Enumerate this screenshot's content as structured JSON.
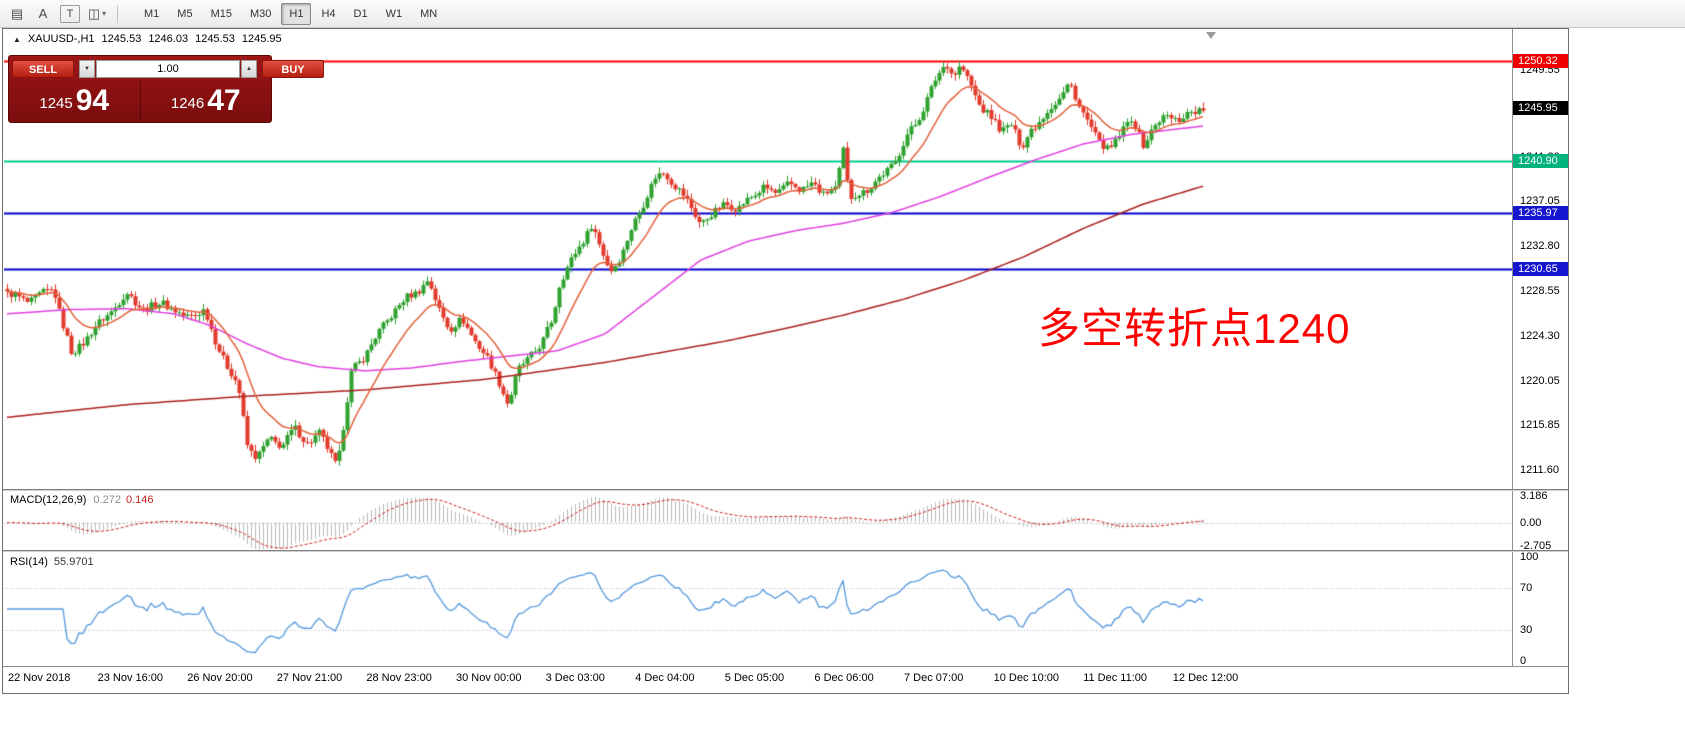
{
  "toolbar": {
    "tools": [
      {
        "name": "chart-template",
        "glyph": "▤"
      },
      {
        "name": "annotation-tool",
        "glyph": "A"
      },
      {
        "name": "text-label-tool",
        "glyph": "T",
        "boxed": true
      },
      {
        "name": "chart-objects",
        "glyph": "◫",
        "caret": true
      }
    ],
    "timeframes": [
      "M1",
      "M5",
      "M15",
      "M30",
      "H1",
      "H4",
      "D1",
      "W1",
      "MN"
    ],
    "active_timeframe": "H1"
  },
  "chart": {
    "symbol": "XAUUSD-,H1",
    "open": "1245.53",
    "high": "1246.03",
    "low": "1245.53",
    "close": "1245.95",
    "collapse_glyph": "▲",
    "current_price": "1245.95",
    "annotation": "多空转折点1240",
    "price_axis": [
      "1249.55",
      "1245.55",
      "1241.30",
      "1237.05",
      "1232.80",
      "1228.55",
      "1224.30",
      "1220.05",
      "1215.85",
      "1211.60"
    ]
  },
  "trade_panel": {
    "sell_label": "SELL",
    "buy_label": "BUY",
    "volume": "1.00",
    "volume_down_glyph": "▼",
    "volume_up_glyph": "▲",
    "sell_price_small": "1245",
    "sell_price_big": "94",
    "buy_price_small": "1246",
    "buy_price_big": "47"
  },
  "macd": {
    "title": "MACD(12,26,9)",
    "main_value": "0.272",
    "signal_value": "0.146",
    "axis": [
      "3.186",
      "0.00",
      "-2.705"
    ]
  },
  "rsi": {
    "title": "RSI(14)",
    "value": "55.9701",
    "axis": [
      "100",
      "70",
      "30",
      "0"
    ]
  },
  "time_axis": [
    "22 Nov 2018",
    "23 Nov 16:00",
    "26 Nov 20:00",
    "27 Nov 21:00",
    "28 Nov 23:00",
    "30 Nov 00:00",
    "3 Dec 03:00",
    "4 Dec 04:00",
    "5 Dec 05:00",
    "6 Dec 06:00",
    "7 Dec 07:00",
    "10 Dec 10:00",
    "11 Dec 11:00",
    "12 Dec 12:00"
  ],
  "chart_data": {
    "type": "candlestick",
    "symbol": "XAUUSD-",
    "timeframe": "H1",
    "bars": 300,
    "price_top": 1253.2,
    "price_bottom": 1210.0,
    "current_price": 1245.95,
    "hlines": [
      {
        "price": 1250.32,
        "label": "1250.32",
        "color": "#ff0000",
        "label_bg": "#ee0000",
        "width": 2
      },
      {
        "price": 1240.9,
        "label": "1240.90",
        "color": "#00c98d",
        "label_bg": "#00b27c",
        "width": 2
      },
      {
        "price": 1235.97,
        "label": "1235.97",
        "color": "#0000cc",
        "label_bg": "#1515cf",
        "width": 2
      },
      {
        "price": 1230.65,
        "label": "1230.65",
        "color": "#0000cc",
        "label_bg": "#1515cf",
        "width": 2
      }
    ],
    "colors": {
      "candle_up": "#2fa12f",
      "candle_down": "#e23a2c",
      "ma_fast": "#e2613b",
      "ma_mid": "#e040e0",
      "ma_slow": "#aa1f1f",
      "macd_hist": "#bbbbbb",
      "macd_signal": "#cc2222",
      "rsi_line": "#5599dd",
      "current_bg": "#000000"
    },
    "price_anchors": [
      [
        0,
        1228.3
      ],
      [
        0.018,
        1227.6
      ],
      [
        0.039,
        1228.8
      ],
      [
        0.045,
        1226.0
      ],
      [
        0.054,
        1222.5
      ],
      [
        0.069,
        1224.5
      ],
      [
        0.085,
        1226.5
      ],
      [
        0.1,
        1228.3
      ],
      [
        0.115,
        1226.8
      ],
      [
        0.131,
        1227.5
      ],
      [
        0.148,
        1226.0
      ],
      [
        0.165,
        1226.8
      ],
      [
        0.173,
        1224.0
      ],
      [
        0.184,
        1221.5
      ],
      [
        0.193,
        1219.5
      ],
      [
        0.201,
        1213.8
      ],
      [
        0.209,
        1212.8
      ],
      [
        0.219,
        1214.5
      ],
      [
        0.23,
        1214.0
      ],
      [
        0.24,
        1215.5
      ],
      [
        0.251,
        1214.2
      ],
      [
        0.261,
        1215.0
      ],
      [
        0.271,
        1213.0
      ],
      [
        0.276,
        1212.0
      ],
      [
        0.282,
        1216.5
      ],
      [
        0.288,
        1221.0
      ],
      [
        0.299,
        1222.5
      ],
      [
        0.31,
        1224.5
      ],
      [
        0.322,
        1226.5
      ],
      [
        0.333,
        1227.8
      ],
      [
        0.343,
        1228.6
      ],
      [
        0.352,
        1229.6
      ],
      [
        0.36,
        1227.0
      ],
      [
        0.37,
        1225.0
      ],
      [
        0.38,
        1225.8
      ],
      [
        0.391,
        1224.0
      ],
      [
        0.402,
        1222.0
      ],
      [
        0.412,
        1219.8
      ],
      [
        0.419,
        1217.8
      ],
      [
        0.427,
        1221.0
      ],
      [
        0.437,
        1222.5
      ],
      [
        0.447,
        1223.5
      ],
      [
        0.456,
        1226.0
      ],
      [
        0.462,
        1229.5
      ],
      [
        0.472,
        1231.5
      ],
      [
        0.482,
        1233.5
      ],
      [
        0.489,
        1235.0
      ],
      [
        0.496,
        1232.5
      ],
      [
        0.504,
        1230.5
      ],
      [
        0.514,
        1232.0
      ],
      [
        0.524,
        1235.0
      ],
      [
        0.534,
        1237.5
      ],
      [
        0.542,
        1239.3
      ],
      [
        0.55,
        1239.8
      ],
      [
        0.559,
        1238.5
      ],
      [
        0.57,
        1236.8
      ],
      [
        0.58,
        1235.0
      ],
      [
        0.59,
        1235.8
      ],
      [
        0.6,
        1237.0
      ],
      [
        0.611,
        1236.2
      ],
      [
        0.621,
        1237.5
      ],
      [
        0.632,
        1238.3
      ],
      [
        0.642,
        1237.8
      ],
      [
        0.653,
        1238.8
      ],
      [
        0.663,
        1238.0
      ],
      [
        0.673,
        1239.0
      ],
      [
        0.682,
        1237.5
      ],
      [
        0.693,
        1238.5
      ],
      [
        0.699,
        1242.0
      ],
      [
        0.704,
        1237.2
      ],
      [
        0.712,
        1237.8
      ],
      [
        0.722,
        1238.5
      ],
      [
        0.732,
        1239.5
      ],
      [
        0.743,
        1241.0
      ],
      [
        0.751,
        1243.0
      ],
      [
        0.76,
        1244.5
      ],
      [
        0.768,
        1246.5
      ],
      [
        0.776,
        1248.5
      ],
      [
        0.785,
        1250.3
      ],
      [
        0.791,
        1249.0
      ],
      [
        0.797,
        1249.8
      ],
      [
        0.806,
        1248.0
      ],
      [
        0.814,
        1246.0
      ],
      [
        0.822,
        1245.0
      ],
      [
        0.831,
        1243.8
      ],
      [
        0.839,
        1244.5
      ],
      [
        0.848,
        1242.0
      ],
      [
        0.856,
        1244.0
      ],
      [
        0.866,
        1245.0
      ],
      [
        0.877,
        1246.5
      ],
      [
        0.888,
        1248.3
      ],
      [
        0.896,
        1246.0
      ],
      [
        0.905,
        1244.5
      ],
      [
        0.913,
        1242.5
      ],
      [
        0.921,
        1241.8
      ],
      [
        0.93,
        1243.5
      ],
      [
        0.94,
        1244.8
      ],
      [
        0.95,
        1242.5
      ],
      [
        0.958,
        1244.0
      ],
      [
        0.969,
        1245.2
      ],
      [
        0.98,
        1244.8
      ],
      [
        0.99,
        1245.5
      ],
      [
        1,
        1245.9
      ]
    ],
    "ma_mid_anchors": [
      [
        0,
        1226.4
      ],
      [
        0.05,
        1226.8
      ],
      [
        0.1,
        1226.9
      ],
      [
        0.14,
        1226.4
      ],
      [
        0.17,
        1225.3
      ],
      [
        0.2,
        1223.6
      ],
      [
        0.23,
        1222.2
      ],
      [
        0.26,
        1221.4
      ],
      [
        0.3,
        1221.0
      ],
      [
        0.34,
        1221.3
      ],
      [
        0.38,
        1221.9
      ],
      [
        0.42,
        1222.4
      ],
      [
        0.46,
        1222.9
      ],
      [
        0.5,
        1224.5
      ],
      [
        0.54,
        1228.0
      ],
      [
        0.58,
        1231.5
      ],
      [
        0.62,
        1233.3
      ],
      [
        0.66,
        1234.3
      ],
      [
        0.7,
        1235.0
      ],
      [
        0.74,
        1236.0
      ],
      [
        0.78,
        1237.5
      ],
      [
        0.82,
        1239.3
      ],
      [
        0.86,
        1241.0
      ],
      [
        0.9,
        1242.5
      ],
      [
        0.94,
        1243.4
      ],
      [
        1,
        1244.2
      ]
    ],
    "ma_slow_anchors": [
      [
        0,
        1216.6
      ],
      [
        0.1,
        1217.8
      ],
      [
        0.2,
        1218.6
      ],
      [
        0.3,
        1219.2
      ],
      [
        0.4,
        1220.2
      ],
      [
        0.5,
        1221.8
      ],
      [
        0.55,
        1222.8
      ],
      [
        0.6,
        1223.8
      ],
      [
        0.65,
        1225.0
      ],
      [
        0.7,
        1226.3
      ],
      [
        0.75,
        1227.8
      ],
      [
        0.8,
        1229.6
      ],
      [
        0.85,
        1231.8
      ],
      [
        0.9,
        1234.5
      ],
      [
        0.95,
        1236.8
      ],
      [
        1,
        1238.5
      ]
    ],
    "macd_range": [
      -2.705,
      3.186
    ],
    "rsi_levels": [
      30,
      70
    ]
  }
}
